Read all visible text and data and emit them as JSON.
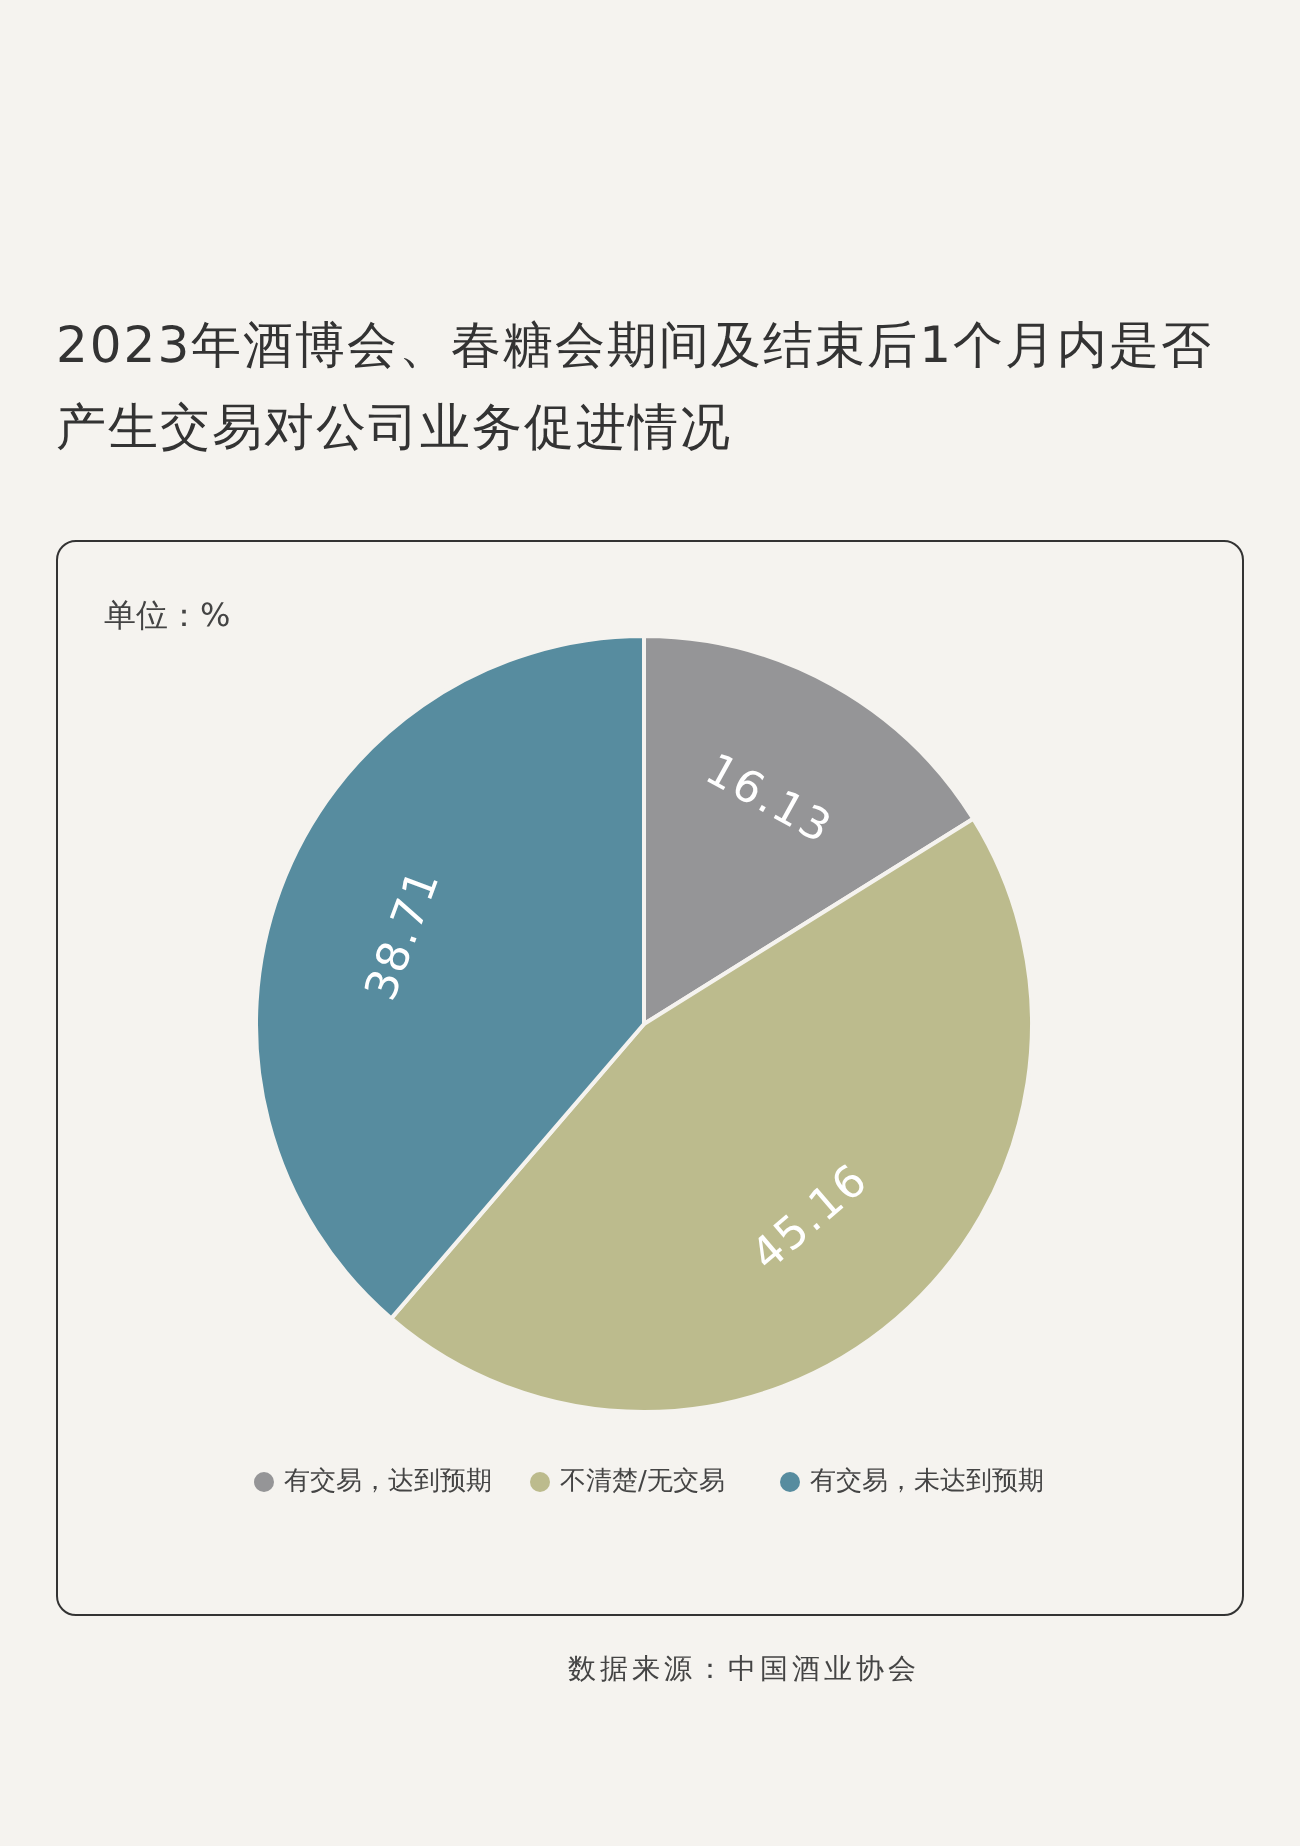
{
  "chart_data": {
    "type": "pie",
    "title": "2023年酒博会、春糖会期间及结束后1个月内是否产生交易对公司业务促进情况",
    "categories": [
      "有交易，达到预期",
      "不清楚/无交易",
      "有交易，未达到预期"
    ],
    "values": [
      16.13,
      45.16,
      38.71
    ],
    "colors": [
      "#959597",
      "#bcbb8d",
      "#578c9f"
    ],
    "data_labels": true,
    "legend": "bottom",
    "annotations": [
      "单位：%",
      "数据来源：中国酒业协会"
    ]
  }
}
